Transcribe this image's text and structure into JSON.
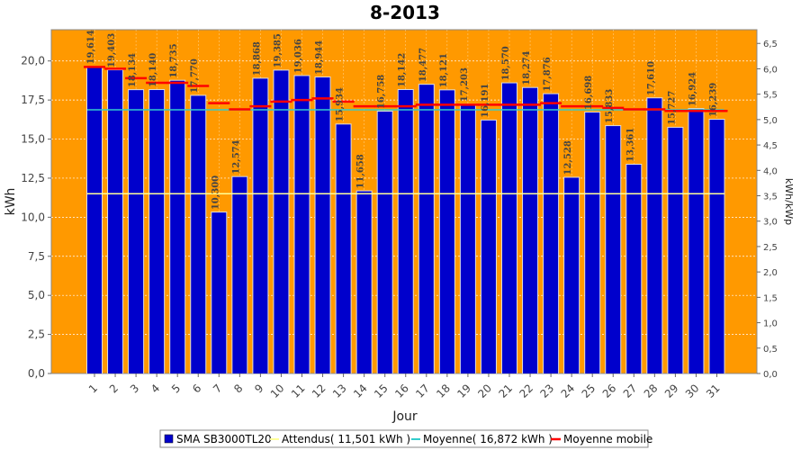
{
  "chart_data": {
    "type": "bar",
    "title": "8-2013",
    "xlabel": "Jour",
    "ylabel": "kWh",
    "y2label": "kWh/kWp",
    "ylim": [
      0,
      22.0
    ],
    "y2lim": [
      0,
      6.77
    ],
    "yticks": [
      "0,0",
      "2,5",
      "5,0",
      "7,5",
      "10,0",
      "12,5",
      "15,0",
      "17,5",
      "20,0"
    ],
    "y2ticks": [
      "0,0",
      "0,5",
      "1,0",
      "1,5",
      "2,0",
      "2,5",
      "3,0",
      "3,5",
      "4,0",
      "4,5",
      "5,0",
      "5,5",
      "6,0",
      "6,5"
    ],
    "categories": [
      "1",
      "2",
      "3",
      "4",
      "5",
      "6",
      "7",
      "8",
      "9",
      "10",
      "11",
      "12",
      "13",
      "14",
      "15",
      "16",
      "17",
      "18",
      "19",
      "20",
      "21",
      "22",
      "23",
      "24",
      "25",
      "26",
      "27",
      "28",
      "29",
      "30",
      "31"
    ],
    "series": [
      {
        "name": "SMA SB3000TL20",
        "values": [
          19.614,
          19.403,
          18.134,
          18.14,
          18.735,
          17.77,
          10.3,
          12.574,
          18.868,
          19.385,
          19.036,
          18.944,
          15.934,
          11.658,
          16.758,
          18.142,
          18.477,
          18.121,
          17.203,
          16.191,
          18.57,
          18.274,
          17.876,
          12.528,
          16.698,
          15.833,
          13.361,
          17.61,
          15.727,
          16.924,
          16.239
        ],
        "labels": [
          "19,614",
          "19,403",
          "18,134",
          "18,140",
          "18,735",
          "17,770",
          "10,300",
          "12,574",
          "18,868",
          "19,385",
          "19,036",
          "18,944",
          "15,934",
          "11,658",
          "16,758",
          "18,142",
          "18,477",
          "18,121",
          "17,203",
          "16,191",
          "18,570",
          "18,274",
          "17,876",
          "12,528",
          "16,698",
          "15,833",
          "13,361",
          "17,610",
          "15,727",
          "16,924",
          "16,239"
        ]
      },
      {
        "name": "Attendus( 11,501 kWh )",
        "value": 11.501
      },
      {
        "name": "Moyenne( 16,872 kWh )",
        "value": 16.872
      },
      {
        "name": "Moyenne mobile",
        "values": [
          19.614,
          19.5,
          18.9,
          18.6,
          18.6,
          18.4,
          17.3,
          16.9,
          17.1,
          17.4,
          17.5,
          17.6,
          17.4,
          17.1,
          17.1,
          17.1,
          17.2,
          17.2,
          17.2,
          17.2,
          17.2,
          17.2,
          17.3,
          17.1,
          17.1,
          17.0,
          16.9,
          16.9,
          16.8,
          16.8,
          16.8
        ]
      }
    ],
    "colors": {
      "plot_bg": "#ff9900",
      "bar": "#0000cc",
      "expected": "#ffff99",
      "average": "#33cccc",
      "moving_avg": "#ff0000"
    },
    "grid": true,
    "legend_position": "bottom"
  }
}
